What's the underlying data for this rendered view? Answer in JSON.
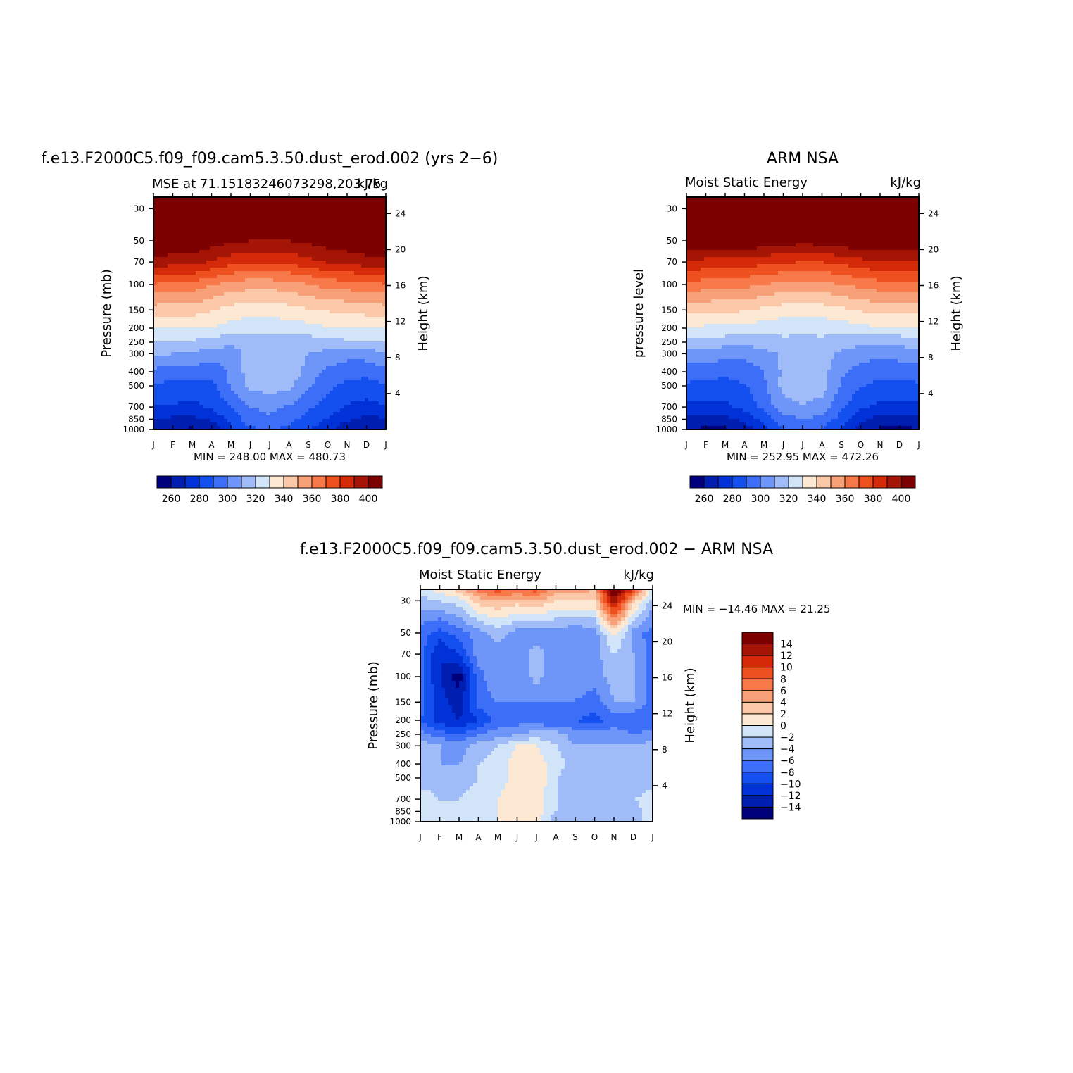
{
  "chart_data": [
    {
      "type": "heatmap",
      "title": "f.e13.F2000C5.f09_f09.cam5.3.50.dust_erod.002 (yrs 2−6)",
      "subtitle_left": "MSE at 71.15183246073298,203.75",
      "subtitle_right": "kJ/kg",
      "xlabel": "",
      "ylabel": "Pressure (mb)",
      "ylabel_right": "Height (km)",
      "x_tick_labels": [
        "J",
        "F",
        "M",
        "A",
        "M",
        "J",
        "J",
        "A",
        "S",
        "O",
        "N",
        "D",
        "J"
      ],
      "y_ticks": [
        30,
        50,
        70,
        100,
        150,
        200,
        250,
        300,
        400,
        500,
        700,
        850,
        1000
      ],
      "y_scale": "log",
      "ylim": [
        1000,
        25
      ],
      "right_ticks": [
        24,
        20,
        16,
        12,
        8,
        4
      ],
      "stats": "MIN = 248.00 MAX = 480.73",
      "field": {
        "x": [
          0,
          1,
          2,
          3,
          4,
          5,
          6,
          7,
          8,
          9,
          10,
          11,
          12
        ],
        "levels": [
          25,
          30,
          50,
          70,
          100,
          150,
          200,
          250,
          300,
          400,
          500,
          700,
          850,
          925,
          1000
        ],
        "values": [
          [
            480,
            480,
            480,
            480,
            480,
            480,
            480,
            480,
            480,
            480,
            480,
            480,
            480
          ],
          [
            470,
            470,
            470,
            470,
            470,
            470,
            470,
            470,
            470,
            470,
            470,
            470,
            470
          ],
          [
            410,
            410,
            410,
            405,
            402,
            400,
            400,
            400,
            402,
            405,
            408,
            410,
            410
          ],
          [
            398,
            394,
            394,
            389,
            384,
            381,
            381,
            383,
            387,
            391,
            392,
            396,
            398
          ],
          [
            369,
            366,
            366,
            361,
            356,
            354,
            354,
            356,
            359,
            364,
            365,
            367,
            369
          ],
          [
            345,
            344,
            344,
            341,
            336,
            334,
            334,
            336,
            339,
            341,
            342,
            344,
            345
          ],
          [
            331,
            330,
            331,
            329,
            326,
            324,
            324,
            325,
            326,
            329,
            330,
            330,
            331
          ],
          [
            318,
            318,
            318,
            315,
            314,
            312,
            312,
            314,
            315,
            317,
            318,
            318,
            318
          ],
          [
            312,
            310,
            309,
            305,
            303,
            314,
            315,
            315,
            310,
            306,
            303,
            304,
            310
          ],
          [
            297,
            295,
            295,
            294,
            302,
            315,
            318,
            318,
            306,
            298,
            295,
            294,
            297
          ],
          [
            289,
            287,
            286,
            287,
            301,
            312,
            315,
            312,
            301,
            293,
            287,
            285,
            289
          ],
          [
            279,
            279,
            277,
            282,
            290,
            300,
            303,
            299,
            292,
            285,
            279,
            277,
            279
          ],
          [
            269,
            268,
            268,
            272,
            284,
            295,
            298,
            293,
            286,
            279,
            272,
            267,
            269
          ],
          [
            266,
            264,
            263,
            267,
            281,
            292,
            294,
            291,
            283,
            276,
            267,
            264,
            266
          ],
          [
            260,
            259,
            258,
            261,
            278,
            288,
            290,
            288,
            280,
            273,
            263,
            259,
            260
          ]
        ]
      },
      "legend": {
        "colors": [
          "#00007d",
          "#001eb0",
          "#0032d8",
          "#1450f0",
          "#3c6ef8",
          "#6e96f8",
          "#a0bcf8",
          "#d2e4f8",
          "#fde8d4",
          "#fcc8aa",
          "#f8a077",
          "#f7794a",
          "#ee5020",
          "#d42a0a",
          "#a41505",
          "#7d0000"
        ],
        "tick_labels": [
          "260",
          "280",
          "300",
          "320",
          "340",
          "360",
          "380",
          "400"
        ],
        "thresholds": [
          260,
          270,
          280,
          290,
          300,
          310,
          320,
          330,
          340,
          350,
          360,
          370,
          380,
          390,
          400
        ]
      }
    },
    {
      "type": "heatmap",
      "title": "ARM NSA",
      "subtitle_left": "Moist Static Energy",
      "subtitle_right": "kJ/kg",
      "xlabel": "",
      "ylabel": "pressure level",
      "ylabel_right": "Height (km)",
      "x_tick_labels": [
        "J",
        "F",
        "M",
        "A",
        "M",
        "J",
        "J",
        "A",
        "S",
        "O",
        "N",
        "D",
        "J"
      ],
      "y_ticks": [
        30,
        50,
        70,
        100,
        150,
        200,
        250,
        300,
        400,
        500,
        700,
        850,
        1000
      ],
      "y_scale": "log",
      "ylim": [
        1000,
        25
      ],
      "right_ticks": [
        24,
        20,
        16,
        12,
        8,
        4
      ],
      "stats": "MIN = 252.95 MAX = 472.26",
      "field": {
        "x": [
          0,
          1,
          2,
          3,
          4,
          5,
          6,
          7,
          8,
          9,
          10,
          11,
          12
        ],
        "levels": [
          25,
          30,
          50,
          70,
          100,
          150,
          200,
          250,
          300,
          400,
          500,
          700,
          850,
          925,
          1000
        ],
        "values": [
          [
            470,
            470,
            470,
            470,
            470,
            470,
            470,
            470,
            470,
            470,
            470,
            470,
            470
          ],
          [
            460,
            460,
            460,
            460,
            460,
            460,
            460,
            460,
            460,
            460,
            460,
            460,
            460
          ],
          [
            410,
            410,
            410,
            410,
            408,
            405,
            404,
            405,
            408,
            410,
            410,
            410,
            410
          ],
          [
            390,
            386,
            385,
            385,
            383,
            381,
            380,
            380,
            383,
            386,
            389,
            390,
            390
          ],
          [
            367,
            365,
            364,
            363,
            360,
            357,
            355,
            357,
            360,
            363,
            366,
            367,
            367
          ],
          [
            344,
            342,
            342,
            341,
            338,
            335,
            334,
            335,
            338,
            341,
            343,
            344,
            344
          ],
          [
            329,
            328,
            328,
            327,
            325,
            323,
            322,
            323,
            325,
            327,
            329,
            329,
            329
          ],
          [
            316,
            315,
            314,
            313,
            315,
            318,
            318,
            318,
            315,
            313,
            312,
            313,
            316
          ],
          [
            306,
            306,
            303,
            302,
            306,
            312,
            315,
            314,
            308,
            304,
            302,
            304,
            306
          ],
          [
            296,
            294,
            293,
            295,
            300,
            312,
            316,
            314,
            302,
            296,
            294,
            294,
            296
          ],
          [
            288,
            287,
            286,
            289,
            298,
            313,
            317,
            314,
            299,
            291,
            286,
            287,
            288
          ],
          [
            277,
            277,
            277,
            284,
            293,
            306,
            309,
            306,
            292,
            282,
            277,
            277,
            277
          ],
          [
            268,
            267,
            267,
            273,
            284,
            296,
            300,
            297,
            286,
            273,
            266,
            266,
            268
          ],
          [
            264,
            263,
            263,
            268,
            279,
            293,
            296,
            293,
            282,
            269,
            262,
            262,
            264
          ],
          [
            259,
            258,
            258,
            262,
            276,
            290,
            292,
            290,
            279,
            265,
            258,
            257,
            259
          ]
        ]
      },
      "legend": {
        "colors": [
          "#00007d",
          "#001eb0",
          "#0032d8",
          "#1450f0",
          "#3c6ef8",
          "#6e96f8",
          "#a0bcf8",
          "#d2e4f8",
          "#fde8d4",
          "#fcc8aa",
          "#f8a077",
          "#f7794a",
          "#ee5020",
          "#d42a0a",
          "#a41505",
          "#7d0000"
        ],
        "tick_labels": [
          "260",
          "280",
          "300",
          "320",
          "340",
          "360",
          "380",
          "400"
        ],
        "thresholds": [
          260,
          270,
          280,
          290,
          300,
          310,
          320,
          330,
          340,
          350,
          360,
          370,
          380,
          390,
          400
        ]
      }
    },
    {
      "type": "heatmap",
      "title": "f.e13.F2000C5.f09_f09.cam5.3.50.dust_erod.002 − ARM NSA",
      "subtitle_left": "Moist Static Energy",
      "subtitle_right": "kJ/kg",
      "xlabel": "",
      "ylabel": "Pressure (mb)",
      "ylabel_right": "Height (km)",
      "x_tick_labels": [
        "J",
        "F",
        "M",
        "A",
        "M",
        "J",
        "J",
        "A",
        "S",
        "O",
        "N",
        "D",
        "J"
      ],
      "y_ticks": [
        30,
        50,
        70,
        100,
        150,
        200,
        250,
        300,
        400,
        500,
        700,
        850,
        1000
      ],
      "y_scale": "log",
      "ylim": [
        1000,
        25
      ],
      "right_ticks": [
        24,
        20,
        16,
        12,
        8,
        4
      ],
      "stats": "MIN = −14.46 MAX =  21.25",
      "field": {
        "x": [
          0,
          1,
          2,
          3,
          4,
          5,
          6,
          7,
          8,
          9,
          10,
          11,
          12
        ],
        "levels": [
          25,
          30,
          50,
          70,
          100,
          150,
          200,
          250,
          300,
          400,
          500,
          700,
          850,
          925,
          1000
        ],
        "values": [
          [
            -1,
            1,
            3,
            7,
            9,
            8,
            9,
            5,
            5,
            4,
            17,
            10,
            -1
          ],
          [
            -3,
            -2,
            -1,
            3,
            4,
            3,
            4,
            2,
            2,
            2,
            14,
            3,
            -3
          ],
          [
            -7,
            -9,
            -7,
            -5,
            -3,
            -5,
            -5,
            -5,
            -6,
            -5,
            1,
            -5,
            -7
          ],
          [
            -7,
            -12,
            -10,
            -5,
            -5,
            -6,
            -3,
            -6,
            -6,
            -5,
            -2,
            -4,
            -7
          ],
          [
            -7,
            -12,
            -15,
            -7,
            -4,
            -6,
            -3,
            -6,
            -5,
            -5,
            -3,
            -4,
            -7
          ],
          [
            -7,
            -11,
            -13,
            -7,
            -6,
            -6,
            -6,
            -6,
            -6,
            -7,
            -4,
            -4,
            -7
          ],
          [
            -8,
            -11,
            -12,
            -10,
            -7,
            -7,
            -7,
            -8,
            -8,
            -9,
            -7,
            -8,
            -8
          ],
          [
            -5,
            -7,
            -8,
            -6,
            -5,
            -4,
            -3,
            -3,
            -5,
            -5,
            -5,
            -6,
            -5
          ],
          [
            -3,
            -4,
            -5,
            -3,
            -2,
            0,
            0,
            -2,
            -4,
            -4,
            -4,
            -4,
            -3
          ],
          [
            -3,
            -4,
            -4,
            -2,
            -1,
            1,
            1,
            -1,
            -3,
            -4,
            -4,
            -4,
            -3
          ],
          [
            -3,
            -3,
            -3,
            -2,
            -1,
            1,
            2,
            -2,
            -3,
            -3,
            -3,
            -4,
            -3
          ],
          [
            -1,
            -2,
            -2,
            -1,
            0,
            1,
            1,
            -2,
            -3,
            -3,
            -3,
            -2,
            -1
          ],
          [
            -1,
            -1,
            -2,
            -1,
            0,
            1,
            1,
            -2,
            -3,
            -3,
            -3,
            -3,
            -1
          ],
          [
            -1,
            -1,
            -1,
            -1,
            0,
            1,
            1,
            -3,
            -3,
            -3,
            -3,
            -3,
            -1
          ],
          [
            -1,
            -1,
            -1,
            -1,
            0,
            1,
            1,
            -3,
            -3,
            -3,
            -3,
            -3,
            -1
          ]
        ]
      },
      "legend": {
        "colors": [
          "#00007d",
          "#001eb0",
          "#0032d8",
          "#1450f0",
          "#3c6ef8",
          "#6e96f8",
          "#a0bcf8",
          "#d2e4f8",
          "#fde8d4",
          "#fcc8aa",
          "#f8a077",
          "#f7794a",
          "#ee5020",
          "#d42a0a",
          "#a41505",
          "#7d0000"
        ],
        "tick_labels": [
          "14",
          "12",
          "10",
          "8",
          "6",
          "4",
          "2",
          "0",
          "−2",
          "−4",
          "−6",
          "−8",
          "−10",
          "−12",
          "−14"
        ],
        "thresholds": [
          -14,
          -12,
          -10,
          -8,
          -6,
          -4,
          -2,
          0,
          2,
          4,
          6,
          8,
          10,
          12,
          14
        ]
      }
    }
  ]
}
